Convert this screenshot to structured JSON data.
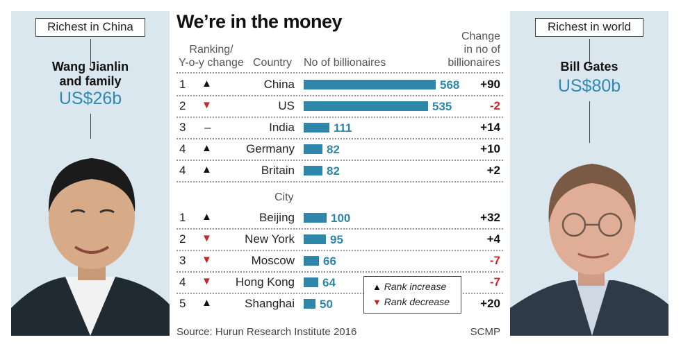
{
  "title": "We’re in the money",
  "left": {
    "label": "Richest in China",
    "name_line1": "Wang Jianlin",
    "name_line2": "and family",
    "wealth": "US$26b"
  },
  "right": {
    "label": "Richest in world",
    "name": "Bill Gates",
    "wealth": "US$80b"
  },
  "headers": {
    "ranking_line1": "Ranking/",
    "ranking_line2": "Y-o-y change",
    "country": "Country",
    "billionaires": "No of billionaires",
    "change_line1": "Change",
    "change_line2": "in no of",
    "change_line3": "billionaires",
    "city": "City"
  },
  "chart_data": {
    "type": "bar",
    "title": "We’re in the money",
    "value_label": "No of billionaires",
    "change_label": "Change in no of billionaires",
    "countries": [
      {
        "rank": "1",
        "trend": "up",
        "name": "China",
        "value": 568,
        "change": "+90"
      },
      {
        "rank": "2",
        "trend": "down",
        "name": "US",
        "value": 535,
        "change": "-2"
      },
      {
        "rank": "3",
        "trend": "same",
        "name": "India",
        "value": 111,
        "change": "+14"
      },
      {
        "rank": "4",
        "trend": "up",
        "name": "Germany",
        "value": 82,
        "change": "+10"
      },
      {
        "rank": "4",
        "trend": "up",
        "name": "Britain",
        "value": 82,
        "change": "+2"
      }
    ],
    "cities": [
      {
        "rank": "1",
        "trend": "up",
        "name": "Beijing",
        "value": 100,
        "change": "+32"
      },
      {
        "rank": "2",
        "trend": "down",
        "name": "New York",
        "value": 95,
        "change": "+4"
      },
      {
        "rank": "3",
        "trend": "down",
        "name": "Moscow",
        "value": 66,
        "change": "-7"
      },
      {
        "rank": "4",
        "trend": "down",
        "name": "Hong Kong",
        "value": 64,
        "change": "-7"
      },
      {
        "rank": "5",
        "trend": "up",
        "name": "Shanghai",
        "value": 50,
        "change": "+20"
      }
    ],
    "xlim": [
      0,
      568
    ]
  },
  "legend": {
    "increase": "Rank increase",
    "decrease": "Rank decrease"
  },
  "footer": {
    "source": "Source: Hurun Research Institute 2016",
    "credit": "SCMP"
  },
  "colors": {
    "bar": "#2e86ab",
    "decrease": "#c62828",
    "panel": "#dbe7ee"
  }
}
